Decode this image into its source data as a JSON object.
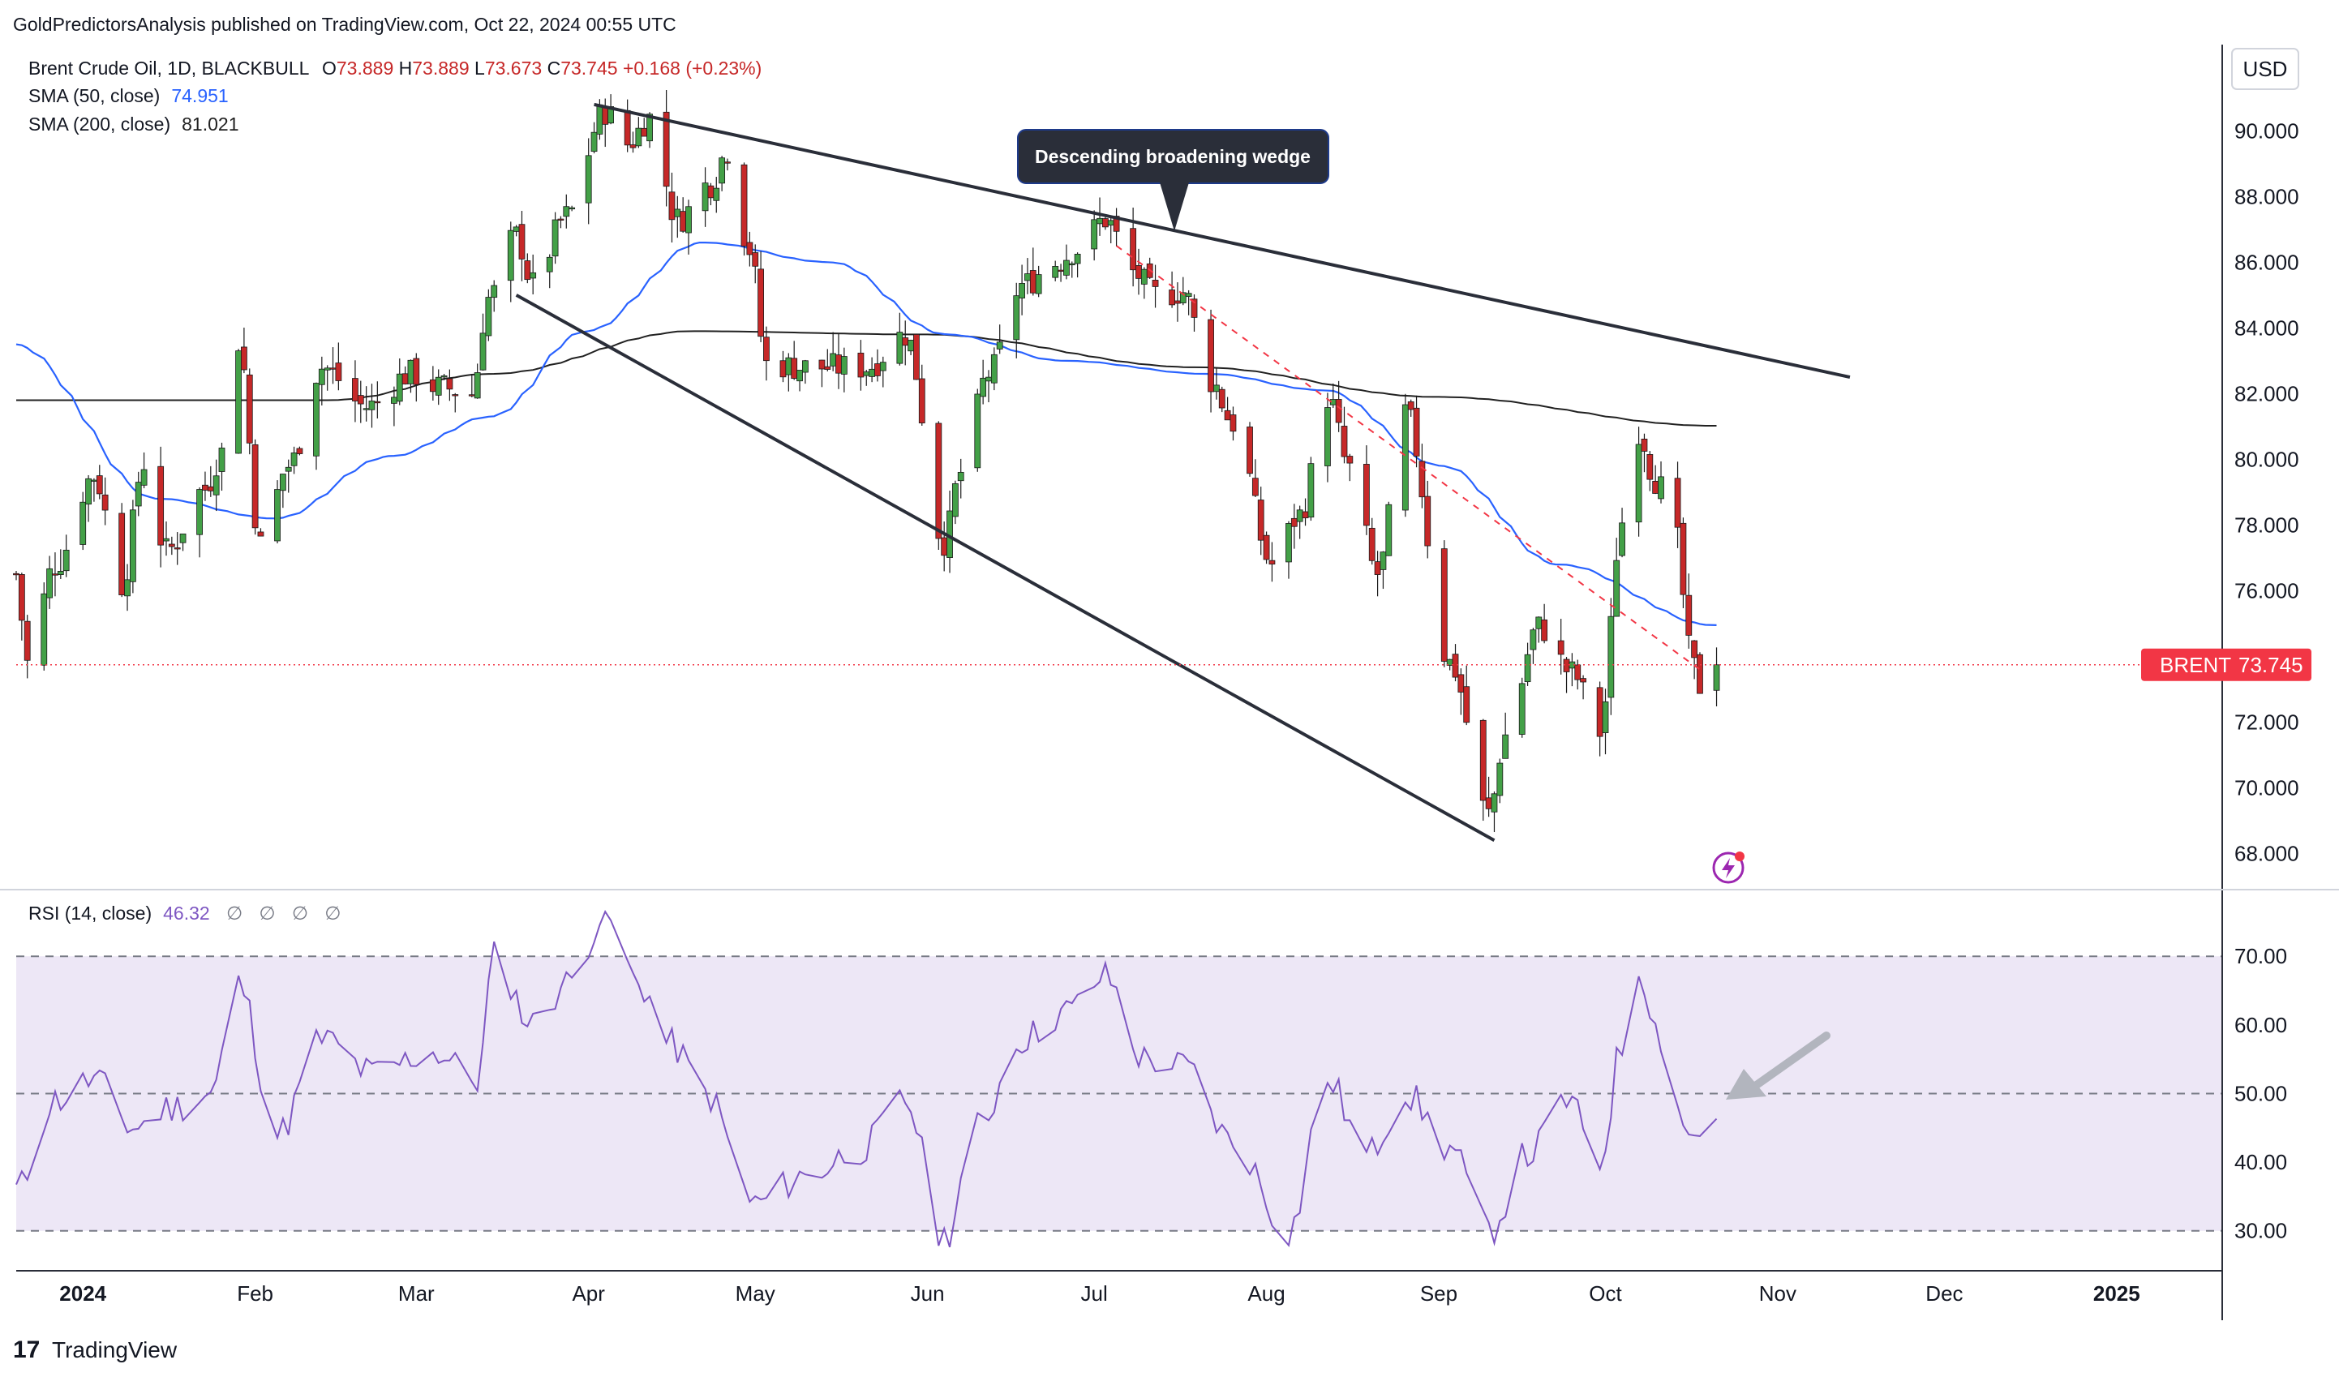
{
  "header": {
    "publisher": "GoldPredictorsAnalysis published on TradingView.com, Oct 22, 2024 00:55 UTC"
  },
  "legend": {
    "symbol_line": "Brent Crude Oil, 1D, BLACKBULL",
    "ohlc": {
      "o_label": "O",
      "o": "73.889",
      "h_label": "H",
      "h": "73.889",
      "l_label": "L",
      "l": "73.673",
      "c_label": "C",
      "c": "73.745",
      "change": "+0.168 (+0.23%)"
    },
    "sma50_label": "SMA (50, close)",
    "sma50_value": "74.951",
    "sma200_label": "SMA (200, close)",
    "sma200_value": "81.021"
  },
  "currency_button": "USD",
  "price_tag": {
    "symbol": "BRENT",
    "value": "73.745"
  },
  "annotation": "Descending broadening wedge",
  "rsi_legend": {
    "label": "RSI (14, close)",
    "value": "46.32",
    "na": [
      "∅",
      "∅",
      "∅",
      "∅"
    ]
  },
  "footer": {
    "brand": "TradingView"
  },
  "colors": {
    "up": "#43a047",
    "down": "#c62828",
    "sma50": "#2962ff",
    "sma200": "#212121",
    "rsi": "#7e57c2",
    "rsi_band": "#ede7f6",
    "price_line": "#f23645",
    "trendline": "#2a2e39",
    "dashed_trend": "#f23645",
    "arrow": "#b2b5be"
  },
  "chart_data": [
    {
      "type": "candlestick",
      "title": "Brent Crude Oil, 1D, BLACKBULL",
      "x_axis": {
        "tick_labels": [
          "2024",
          "Feb",
          "Mar",
          "Apr",
          "May",
          "Jun",
          "Jul",
          "Aug",
          "Sep",
          "Oct",
          "Nov",
          "Dec",
          "2025"
        ],
        "range": [
          "2023-12-20",
          "2025-01-20"
        ]
      },
      "y_axis": {
        "ticks": [
          "68.000",
          "70.000",
          "72.000",
          "74.000",
          "76.000",
          "78.000",
          "80.000",
          "82.000",
          "84.000",
          "86.000",
          "88.000",
          "90.000"
        ],
        "ylim": [
          67.0,
          92.5
        ],
        "position": "right"
      },
      "last_close": 73.745,
      "ohlc_anchors": [
        {
          "date": "2023-12-20",
          "close": 76.5
        },
        {
          "date": "2023-12-22",
          "close": 73.8
        },
        {
          "date": "2023-12-27",
          "close": 76.8
        },
        {
          "date": "2024-01-03",
          "close": 79.5
        },
        {
          "date": "2024-01-08",
          "close": 76.2
        },
        {
          "date": "2024-01-12",
          "close": 79.9
        },
        {
          "date": "2024-01-16",
          "close": 77.2
        },
        {
          "date": "2024-01-23",
          "close": 79.1
        },
        {
          "date": "2024-01-26",
          "close": 80.2
        },
        {
          "date": "2024-01-29",
          "close": 83.6
        },
        {
          "date": "2024-02-02",
          "close": 77.4
        },
        {
          "date": "2024-02-07",
          "close": 79.8
        },
        {
          "date": "2024-02-13",
          "close": 82.8
        },
        {
          "date": "2024-02-21",
          "close": 81.6
        },
        {
          "date": "2024-02-29",
          "close": 82.6
        },
        {
          "date": "2024-03-05",
          "close": 82.2
        },
        {
          "date": "2024-03-11",
          "close": 82.0
        },
        {
          "date": "2024-03-14",
          "close": 84.9
        },
        {
          "date": "2024-03-19",
          "close": 86.8
        },
        {
          "date": "2024-03-22",
          "close": 85.3
        },
        {
          "date": "2024-03-28",
          "close": 87.4
        },
        {
          "date": "2024-04-04",
          "close": 90.6
        },
        {
          "date": "2024-04-08",
          "close": 89.6
        },
        {
          "date": "2024-04-12",
          "close": 90.4
        },
        {
          "date": "2024-04-17",
          "close": 87.3
        },
        {
          "date": "2024-04-23",
          "close": 88.4
        },
        {
          "date": "2024-04-26",
          "close": 89.4
        },
        {
          "date": "2024-04-30",
          "close": 86.4
        },
        {
          "date": "2024-05-03",
          "close": 82.9
        },
        {
          "date": "2024-05-10",
          "close": 82.8
        },
        {
          "date": "2024-05-15",
          "close": 82.8
        },
        {
          "date": "2024-05-21",
          "close": 82.8
        },
        {
          "date": "2024-05-28",
          "close": 83.8
        },
        {
          "date": "2024-06-04",
          "close": 77.5
        },
        {
          "date": "2024-06-07",
          "close": 79.6
        },
        {
          "date": "2024-06-12",
          "close": 82.6
        },
        {
          "date": "2024-06-18",
          "close": 85.3
        },
        {
          "date": "2024-06-24",
          "close": 86.0
        },
        {
          "date": "2024-06-28",
          "close": 86.4
        },
        {
          "date": "2024-07-03",
          "close": 87.3
        },
        {
          "date": "2024-07-08",
          "close": 85.7
        },
        {
          "date": "2024-07-12",
          "close": 85.0
        },
        {
          "date": "2024-07-17",
          "close": 85.1
        },
        {
          "date": "2024-07-22",
          "close": 82.4
        },
        {
          "date": "2024-07-26",
          "close": 81.1
        },
        {
          "date": "2024-08-02",
          "close": 76.8
        },
        {
          "date": "2024-08-07",
          "close": 78.3
        },
        {
          "date": "2024-08-12",
          "close": 81.9
        },
        {
          "date": "2024-08-16",
          "close": 79.7
        },
        {
          "date": "2024-08-21",
          "close": 76.5
        },
        {
          "date": "2024-08-26",
          "close": 81.4
        },
        {
          "date": "2024-09-03",
          "close": 73.8
        },
        {
          "date": "2024-09-10",
          "close": 69.2
        },
        {
          "date": "2024-09-13",
          "close": 71.6
        },
        {
          "date": "2024-09-19",
          "close": 74.9
        },
        {
          "date": "2024-09-25",
          "close": 73.5
        },
        {
          "date": "2024-09-30",
          "close": 71.7
        },
        {
          "date": "2024-10-04",
          "close": 78.1
        },
        {
          "date": "2024-10-07",
          "close": 80.9
        },
        {
          "date": "2024-10-10",
          "close": 79.4
        },
        {
          "date": "2024-10-14",
          "close": 77.5
        },
        {
          "date": "2024-10-16",
          "close": 74.2
        },
        {
          "date": "2024-10-18",
          "close": 73.1
        },
        {
          "date": "2024-10-21",
          "close": 73.745
        }
      ],
      "sma50": [
        {
          "date": "2023-12-20",
          "value": 83.5
        },
        {
          "date": "2024-01-15",
          "value": 78.8
        },
        {
          "date": "2024-02-05",
          "value": 78.2
        },
        {
          "date": "2024-02-26",
          "value": 80.1
        },
        {
          "date": "2024-03-15",
          "value": 81.3
        },
        {
          "date": "2024-04-01",
          "value": 83.9
        },
        {
          "date": "2024-04-22",
          "value": 86.6
        },
        {
          "date": "2024-05-15",
          "value": 86.0
        },
        {
          "date": "2024-06-05",
          "value": 83.8
        },
        {
          "date": "2024-06-26",
          "value": 83.0
        },
        {
          "date": "2024-07-22",
          "value": 82.6
        },
        {
          "date": "2024-08-12",
          "value": 82.1
        },
        {
          "date": "2024-09-02",
          "value": 79.8
        },
        {
          "date": "2024-09-23",
          "value": 76.8
        },
        {
          "date": "2024-10-21",
          "value": 74.951
        }
      ],
      "sma200": [
        {
          "date": "2023-12-20",
          "value": 81.8
        },
        {
          "date": "2024-02-15",
          "value": 81.8
        },
        {
          "date": "2024-03-15",
          "value": 82.6
        },
        {
          "date": "2024-04-20",
          "value": 83.9
        },
        {
          "date": "2024-06-01",
          "value": 83.8
        },
        {
          "date": "2024-07-20",
          "value": 82.8
        },
        {
          "date": "2024-09-01",
          "value": 81.9
        },
        {
          "date": "2024-10-21",
          "value": 81.021
        }
      ],
      "trendlines": [
        {
          "name": "upper",
          "from": {
            "date": "2024-04-02",
            "price": 90.8
          },
          "to": {
            "date": "2024-11-14",
            "price": 82.5
          }
        },
        {
          "name": "lower",
          "from": {
            "date": "2024-03-19",
            "price": 85.0
          },
          "to": {
            "date": "2024-09-11",
            "price": 68.4
          }
        },
        {
          "name": "dashed",
          "from": {
            "date": "2024-07-05",
            "price": 86.5
          },
          "to": {
            "date": "2024-10-18",
            "price": 73.6
          }
        }
      ]
    },
    {
      "type": "line",
      "title": "RSI (14, close)",
      "y_axis": {
        "ticks": [
          "30.00",
          "40.00",
          "50.00",
          "60.00",
          "70.00"
        ],
        "ylim": [
          25,
          77
        ],
        "bands": [
          30,
          50,
          70
        ]
      },
      "last_value": 46.32,
      "series": [
        {
          "date": "2023-12-20",
          "value": 36
        },
        {
          "date": "2023-12-27",
          "value": 49
        },
        {
          "date": "2024-01-03",
          "value": 52
        },
        {
          "date": "2024-01-10",
          "value": 45
        },
        {
          "date": "2024-01-17",
          "value": 48
        },
        {
          "date": "2024-01-24",
          "value": 50
        },
        {
          "date": "2024-01-29",
          "value": 66
        },
        {
          "date": "2024-02-05",
          "value": 44
        },
        {
          "date": "2024-02-13",
          "value": 58
        },
        {
          "date": "2024-02-22",
          "value": 53
        },
        {
          "date": "2024-03-04",
          "value": 56
        },
        {
          "date": "2024-03-12",
          "value": 52
        },
        {
          "date": "2024-03-15",
          "value": 70
        },
        {
          "date": "2024-03-22",
          "value": 60
        },
        {
          "date": "2024-03-28",
          "value": 66
        },
        {
          "date": "2024-04-04",
          "value": 76
        },
        {
          "date": "2024-04-10",
          "value": 66
        },
        {
          "date": "2024-04-16",
          "value": 57
        },
        {
          "date": "2024-04-22",
          "value": 50
        },
        {
          "date": "2024-05-01",
          "value": 34
        },
        {
          "date": "2024-05-10",
          "value": 38
        },
        {
          "date": "2024-05-20",
          "value": 42
        },
        {
          "date": "2024-05-28",
          "value": 49
        },
        {
          "date": "2024-06-04",
          "value": 29
        },
        {
          "date": "2024-06-10",
          "value": 45
        },
        {
          "date": "2024-06-18",
          "value": 58
        },
        {
          "date": "2024-06-26",
          "value": 62
        },
        {
          "date": "2024-07-03",
          "value": 67
        },
        {
          "date": "2024-07-10",
          "value": 55
        },
        {
          "date": "2024-07-17",
          "value": 54
        },
        {
          "date": "2024-07-26",
          "value": 43
        },
        {
          "date": "2024-08-05",
          "value": 30
        },
        {
          "date": "2024-08-12",
          "value": 52
        },
        {
          "date": "2024-08-19",
          "value": 41
        },
        {
          "date": "2024-08-26",
          "value": 50
        },
        {
          "date": "2024-09-03",
          "value": 42
        },
        {
          "date": "2024-09-10",
          "value": 30
        },
        {
          "date": "2024-09-17",
          "value": 41
        },
        {
          "date": "2024-09-24",
          "value": 49
        },
        {
          "date": "2024-09-30",
          "value": 40
        },
        {
          "date": "2024-10-04",
          "value": 57
        },
        {
          "date": "2024-10-07",
          "value": 68
        },
        {
          "date": "2024-10-11",
          "value": 58
        },
        {
          "date": "2024-10-16",
          "value": 44
        },
        {
          "date": "2024-10-21",
          "value": 46.32
        }
      ]
    }
  ]
}
